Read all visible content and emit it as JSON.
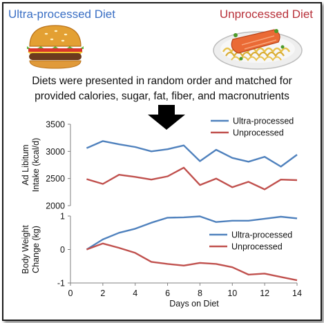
{
  "header": {
    "left_title": "Ultra-processed Diet",
    "right_title": "Unprocessed Diet",
    "description_line1": "Diets were presented in random order and matched for",
    "description_line2": "provided calories, sugar, fat, fiber, and macronutrients"
  },
  "colors": {
    "ultra_processed": "#4f81bd",
    "unprocessed": "#c0504d",
    "left_title": "#3a6fc4",
    "right_title": "#b8313a"
  },
  "icons": [
    "hamburger-icon",
    "salmon-pasta-icon",
    "down-arrow-icon"
  ],
  "chart_data": [
    {
      "type": "line",
      "ylabel": "Ad Libitum Intake (kcal/d)",
      "ylim": [
        2000,
        3500
      ],
      "yticks": [
        2000,
        2500,
        3000,
        3500
      ],
      "xlim": [
        0,
        14
      ],
      "grid": false,
      "legend": "top-right",
      "x": [
        1,
        2,
        3,
        4,
        5,
        6,
        7,
        8,
        9,
        10,
        11,
        12,
        13,
        14
      ],
      "series": [
        {
          "name": "Ultra-processed",
          "values": [
            3060,
            3190,
            3130,
            3080,
            3000,
            3040,
            3110,
            2820,
            3030,
            2880,
            2810,
            2900,
            2720,
            2940
          ]
        },
        {
          "name": "Unprocessed",
          "values": [
            2490,
            2400,
            2570,
            2530,
            2480,
            2540,
            2700,
            2380,
            2500,
            2340,
            2440,
            2300,
            2480,
            2470
          ]
        }
      ]
    },
    {
      "type": "line",
      "ylabel": "Body Weight Change (kg)",
      "xlabel": "Days on Diet",
      "ylim": [
        -1,
        1
      ],
      "yticks": [
        -1,
        0,
        1
      ],
      "xlim": [
        0,
        14
      ],
      "xticks": [
        0,
        2,
        4,
        6,
        8,
        10,
        12,
        14
      ],
      "grid": false,
      "legend": "top-right",
      "x": [
        1,
        2,
        3,
        4,
        5,
        6,
        7,
        8,
        9,
        10,
        11,
        12,
        13,
        14
      ],
      "series": [
        {
          "name": "Ultra-processed",
          "values": [
            0.0,
            0.3,
            0.5,
            0.62,
            0.8,
            0.95,
            0.96,
            0.99,
            0.82,
            0.86,
            0.86,
            0.92,
            0.98,
            0.93
          ]
        },
        {
          "name": "Unprocessed",
          "values": [
            0.0,
            0.18,
            0.05,
            -0.1,
            -0.37,
            -0.43,
            -0.48,
            -0.4,
            -0.43,
            -0.53,
            -0.75,
            -0.72,
            -0.82,
            -0.92
          ]
        }
      ]
    }
  ]
}
